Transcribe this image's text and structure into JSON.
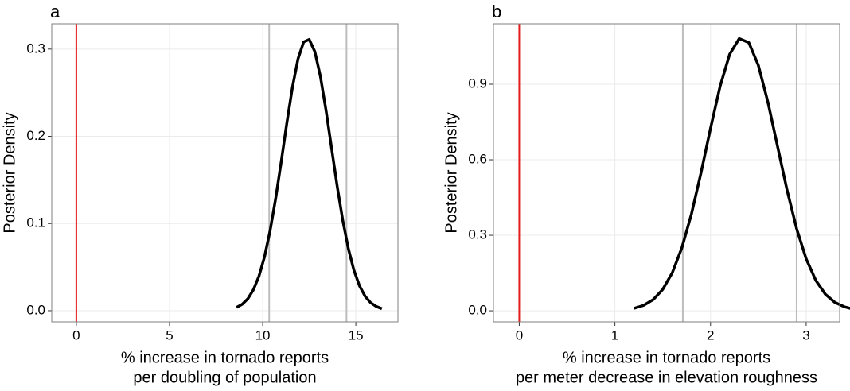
{
  "chart_data": [
    {
      "type": "line",
      "title": "a",
      "ylabel": "Posterior Density",
      "xlabel": [
        "% increase in tornado reports",
        "per doubling of population"
      ],
      "x": [
        8.6,
        8.9,
        9.2,
        9.5,
        9.8,
        10.1,
        10.4,
        10.7,
        11.0,
        11.3,
        11.6,
        11.9,
        12.2,
        12.5,
        12.8,
        13.1,
        13.4,
        13.7,
        14.0,
        14.3,
        14.6,
        14.9,
        15.2,
        15.5,
        15.8,
        16.1,
        16.4
      ],
      "values": [
        0.0038,
        0.0074,
        0.0136,
        0.0239,
        0.0395,
        0.0619,
        0.0919,
        0.129,
        0.1714,
        0.2156,
        0.2566,
        0.289,
        0.3082,
        0.311,
        0.2971,
        0.2686,
        0.2298,
        0.1861,
        0.1427,
        0.1035,
        0.0711,
        0.0462,
        0.0284,
        0.0165,
        0.0091,
        0.0048,
        0.0023
      ],
      "color": "#000000",
      "vlines": [
        {
          "value": 0,
          "color": "#e41a1c"
        },
        {
          "value": 10.35,
          "color": "#bdbdbd"
        },
        {
          "value": 14.5,
          "color": "#bdbdbd"
        }
      ],
      "xlim": [
        -1.32,
        17.26
      ],
      "xticks": [
        0,
        5,
        10,
        15
      ],
      "ylim": [
        -0.0128,
        0.329
      ],
      "yticks": [
        {
          "value": 0,
          "label": "0.0"
        },
        {
          "value": 0.1,
          "label": "0.1"
        },
        {
          "value": 0.2,
          "label": "0.2"
        },
        {
          "value": 0.3,
          "label": "0.3"
        }
      ],
      "grid": true
    },
    {
      "type": "line",
      "title": "b",
      "ylabel": "Posterior Density",
      "xlabel": [
        "% increase in tornado reports",
        "per meter decrease in elevation roughness"
      ],
      "x": [
        1.2,
        1.3,
        1.4,
        1.5,
        1.6,
        1.7,
        1.8,
        1.9,
        2.0,
        2.1,
        2.2,
        2.3,
        2.4,
        2.5,
        2.6,
        2.7,
        2.8,
        2.9,
        3.0,
        3.1,
        3.2,
        3.3,
        3.4,
        3.47
      ],
      "values": [
        0.0097,
        0.0215,
        0.0443,
        0.0849,
        0.1511,
        0.25,
        0.384,
        0.5476,
        0.7253,
        0.8922,
        1.0193,
        1.0814,
        1.0655,
        0.975,
        0.8286,
        0.654,
        0.4794,
        0.3263,
        0.2063,
        0.1211,
        0.066,
        0.0334,
        0.0157,
        0.0089
      ],
      "color": "#000000",
      "vlines": [
        {
          "value": 0,
          "color": "#e41a1c"
        },
        {
          "value": 1.71,
          "color": "#bdbdbd"
        },
        {
          "value": 2.9,
          "color": "#bdbdbd"
        }
      ],
      "xlim": [
        -0.27,
        3.35
      ],
      "xticks": [
        0,
        1,
        2,
        3
      ],
      "ylim": [
        -0.044,
        1.14
      ],
      "yticks": [
        {
          "value": 0,
          "label": "0.0"
        },
        {
          "value": 0.3,
          "label": "0.3"
        },
        {
          "value": 0.6,
          "label": "0.6"
        },
        {
          "value": 0.9,
          "label": "0.9"
        }
      ],
      "grid": true
    }
  ]
}
